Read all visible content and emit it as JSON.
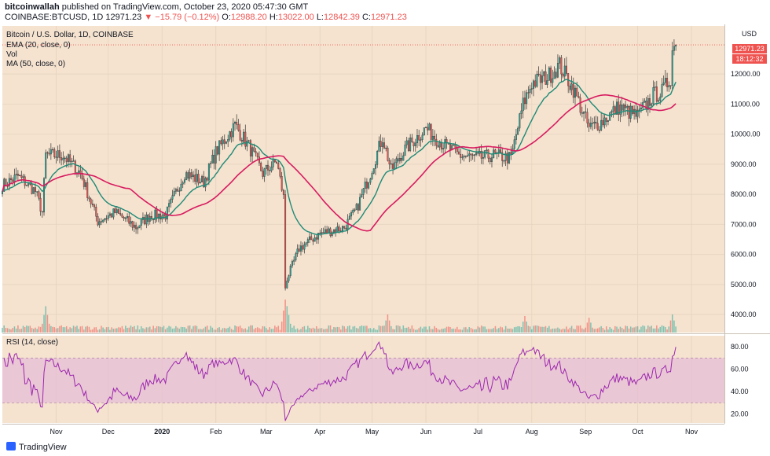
{
  "header": {
    "publisher": "bitcoinwallah",
    "published_text": "published on TradingView.com, October 23, 2020 05:47:30 GMT",
    "symbol": "COINBASE:BTCUSD, 1D",
    "last": "12971.23",
    "change": "▼ −15.79 (−0.12%)",
    "o_label": "O:",
    "o_value": "12988.20",
    "h_label": "H:",
    "h_value": "13022.00",
    "l_label": "L:",
    "l_value": "12842.39",
    "c_label": "C:",
    "c_value": "12971.23"
  },
  "legend": {
    "title": "Bitcoin / U.S. Dollar, 1D, COINBASE",
    "ema": "EMA (20, close, 0)",
    "vol": "Vol",
    "ma": "MA (50, close, 0)",
    "rsi": "RSI (14, close)"
  },
  "price_axis": {
    "unit": "USD",
    "last_label": "12971.23",
    "countdown_label": "18:12:32"
  },
  "footer": {
    "brand": "TradingView"
  },
  "colors": {
    "background": "#f5e3cf",
    "up": "#26a69a",
    "down": "#ef5350",
    "ema": "#1e8a77",
    "ma": "#d81b60",
    "rsi": "#9c27b0",
    "rsi_band": "#e7bfd5",
    "last_tag": "#ef5350"
  },
  "chart_data": [
    {
      "type": "candlestick",
      "title": "Bitcoin / U.S. Dollar, 1D, COINBASE",
      "ylabel": "USD",
      "ylim": [
        3400,
        13600
      ],
      "y_ticks": [
        4000,
        5000,
        6000,
        7000,
        8000,
        9000,
        10000,
        11000,
        12000
      ],
      "y_tick_labels": [
        "4000.00",
        "5000.00",
        "6000.00",
        "7000.00",
        "8000.00",
        "9000.00",
        "10000.00",
        "11000.00",
        "12000.00"
      ],
      "x_ticks": [
        "2019-11-01",
        "2019-12-01",
        "2020-01-01",
        "2020-02-01",
        "2020-03-01",
        "2020-04-01",
        "2020-05-01",
        "2020-06-01",
        "2020-07-01",
        "2020-08-01",
        "2020-09-01",
        "2020-10-01",
        "2020-11-01"
      ],
      "x_tick_labels": [
        "Nov",
        "Dec",
        "2020",
        "Feb",
        "Mar",
        "Apr",
        "May",
        "Jun",
        "Jul",
        "Aug",
        "Sep",
        "Oct",
        "Nov"
      ],
      "x_range": [
        "2019-10-01",
        "2020-11-20"
      ],
      "price_anchors": {
        "x": [
          "2019-10-01",
          "2019-10-10",
          "2019-10-20",
          "2019-10-24",
          "2019-10-26",
          "2019-11-05",
          "2019-11-15",
          "2019-11-25",
          "2019-12-05",
          "2019-12-17",
          "2019-12-25",
          "2020-01-03",
          "2020-01-14",
          "2020-01-25",
          "2020-02-01",
          "2020-02-12",
          "2020-02-20",
          "2020-02-28",
          "2020-03-07",
          "2020-03-11",
          "2020-03-12",
          "2020-03-13",
          "2020-03-20",
          "2020-04-01",
          "2020-04-15",
          "2020-04-22",
          "2020-04-30",
          "2020-05-07",
          "2020-05-12",
          "2020-05-20",
          "2020-06-01",
          "2020-06-10",
          "2020-06-20",
          "2020-07-01",
          "2020-07-10",
          "2020-07-20",
          "2020-07-27",
          "2020-08-01",
          "2020-08-10",
          "2020-08-17",
          "2020-08-25",
          "2020-09-03",
          "2020-09-10",
          "2020-09-20",
          "2020-10-01",
          "2020-10-10",
          "2020-10-15",
          "2020-10-20",
          "2020-10-21",
          "2020-10-23"
        ],
        "close": [
          8300,
          8600,
          8100,
          7400,
          9300,
          9300,
          8700,
          7100,
          7400,
          6900,
          7300,
          7300,
          8700,
          8400,
          9400,
          10300,
          9600,
          8700,
          9100,
          7900,
          4900,
          5200,
          6200,
          6700,
          6900,
          7500,
          8700,
          9900,
          8800,
          9500,
          10200,
          9700,
          9300,
          9200,
          9300,
          9200,
          11000,
          11700,
          11900,
          12300,
          11500,
          10200,
          10400,
          10900,
          10600,
          11300,
          11400,
          11900,
          12800,
          12971.23
        ]
      },
      "last_value": 12971.23
    },
    {
      "type": "line",
      "series": [
        {
          "name": "EMA (20, close, 0)",
          "note": "computed from candle closes"
        },
        {
          "name": "MA (50, close, 0)",
          "note": "computed from candle closes"
        }
      ]
    },
    {
      "type": "bar",
      "name": "Vol",
      "spikes": {
        "x": [
          "2019-10-26",
          "2020-03-12",
          "2020-03-13",
          "2020-05-10",
          "2020-07-28",
          "2020-09-03",
          "2020-10-21"
        ],
        "relative": [
          0.8,
          1.0,
          0.8,
          0.55,
          0.5,
          0.45,
          0.55
        ]
      }
    },
    {
      "type": "line",
      "name": "RSI (14, close)",
      "ylim": [
        12,
        90
      ],
      "y_ticks": [
        20,
        40,
        60,
        80
      ],
      "y_tick_labels": [
        "20.00",
        "40.00",
        "60.00",
        "80.00"
      ],
      "bands": [
        30,
        70
      ],
      "last_value": 80
    }
  ]
}
